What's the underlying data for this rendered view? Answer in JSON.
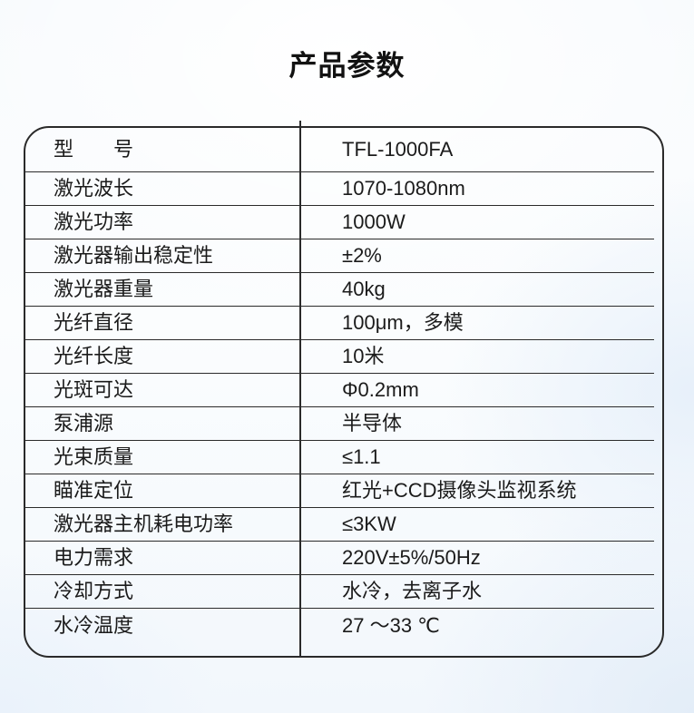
{
  "page": {
    "title": "产品参数"
  },
  "colors": {
    "text": "#1b1b1b",
    "table_border": "#2a2a2a",
    "background_tint": "#e9f1fa"
  },
  "table": {
    "rows": [
      {
        "label": "型　　号",
        "value": "TFL-1000FA"
      },
      {
        "label": "激光波长",
        "value": "1070-1080nm"
      },
      {
        "label": "激光功率",
        "value": "1000W"
      },
      {
        "label": "激光器输出稳定性",
        "value": "±2%"
      },
      {
        "label": "激光器重量",
        "value": "40kg"
      },
      {
        "label": "光纤直径",
        "value": "100μm，多模"
      },
      {
        "label": "光纤长度",
        "value": "10米"
      },
      {
        "label": "光斑可达",
        "value": "Φ0.2mm"
      },
      {
        "label": "泵浦源",
        "value": "半导体"
      },
      {
        "label": "光束质量",
        "value": "≤1.1"
      },
      {
        "label": "瞄准定位",
        "value": "红光+CCD摄像头监视系统"
      },
      {
        "label": "激光器主机耗电功率",
        "value": "≤3KW"
      },
      {
        "label": "电力需求",
        "value": "220V±5%/50Hz"
      },
      {
        "label": "冷却方式",
        "value": "水冷，去离子水"
      },
      {
        "label": "水冷温度",
        "value": "27 ～33 ℃"
      }
    ]
  }
}
